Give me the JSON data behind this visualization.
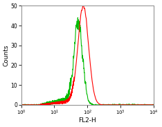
{
  "title": "",
  "xlabel": "FL2-H",
  "ylabel": "Counts",
  "xlim_log": [
    0,
    4
  ],
  "ylim": [
    0,
    50
  ],
  "yticks": [
    0,
    10,
    20,
    30,
    40,
    50
  ],
  "background_color": "#ffffff",
  "green_color": "#00bb00",
  "red_color": "#ff0000",
  "green_peak_log": 1.72,
  "green_peak_height": 42,
  "red_peak_log": 1.87,
  "red_peak_height": 50,
  "green_sigma": 0.13,
  "red_sigma": 0.16,
  "linewidth": 0.8,
  "fig_width": 2.34,
  "fig_height": 1.84,
  "dpi": 100
}
